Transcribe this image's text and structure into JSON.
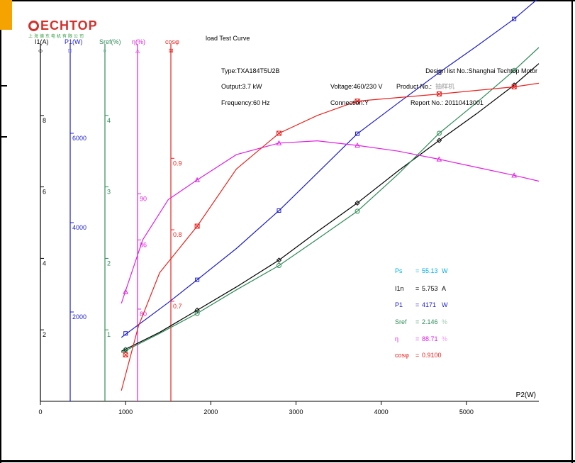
{
  "brand": {
    "name": "ECHTOP",
    "subtitle": "上海德东电机有限公司",
    "accent": "#d3302b"
  },
  "chart_data": {
    "type": "line",
    "title": "load Test Curve",
    "xlabel": "P2(W)",
    "xlim": [
      0,
      5850
    ],
    "x_ticks": [
      0,
      1000,
      2000,
      3000,
      4000,
      5000
    ],
    "axes": [
      {
        "key": "I1",
        "label": "I1(A)",
        "marker": "◇",
        "color": "#000000",
        "range": [
          0,
          10
        ],
        "ticks": [
          2,
          4,
          6,
          8
        ]
      },
      {
        "key": "P1",
        "label": "P1(W)",
        "marker": "□",
        "color": "#1c1ccf",
        "range": [
          0,
          8000
        ],
        "ticks": [
          2000,
          4000,
          6000
        ]
      },
      {
        "key": "Sref",
        "label": "Sref(%)",
        "marker": "○",
        "color": "#2e8b57",
        "range": [
          0,
          5
        ],
        "ticks": [
          1,
          2,
          3,
          4
        ]
      },
      {
        "key": "eta",
        "label": "η(%)",
        "marker": "△",
        "color": "#e020e0",
        "range": [
          72,
          103
        ],
        "ticks": [
          80,
          86,
          90
        ]
      },
      {
        "key": "cos",
        "label": "cosφ",
        "marker": "⊠",
        "color": "#e8231f",
        "range": [
          0.56,
          1.06
        ],
        "ticks": [
          0.7,
          0.8,
          0.9
        ]
      }
    ],
    "series": [
      {
        "name": "I1",
        "axis": "I1",
        "color": "#000000",
        "x": [
          1000,
          1840,
          2800,
          3720,
          4680,
          5560
        ],
        "y": [
          1.45,
          2.55,
          3.95,
          5.55,
          7.3,
          8.85
        ],
        "curve_x": [
          950,
          1400,
          1840,
          2300,
          2800,
          3250,
          3720,
          4200,
          4680,
          5120,
          5560,
          5850
        ],
        "curve_y": [
          1.4,
          1.93,
          2.55,
          3.2,
          3.95,
          4.75,
          5.55,
          6.45,
          7.3,
          8.05,
          8.85,
          9.45
        ]
      },
      {
        "name": "P1",
        "axis": "P1",
        "color": "#1c1ccf",
        "x": [
          1000,
          1840,
          2800,
          3720,
          4680,
          5560
        ],
        "y": [
          1520,
          2720,
          4270,
          5990,
          7360,
          8560
        ],
        "curve_x": [
          950,
          1500,
          1840,
          2300,
          2800,
          3250,
          3720,
          4200,
          4680,
          5120,
          5560,
          5850
        ],
        "curve_y": [
          1430,
          2210,
          2720,
          3420,
          4270,
          5110,
          5990,
          6680,
          7360,
          7950,
          8560,
          9030
        ]
      },
      {
        "name": "Sref",
        "axis": "Sref",
        "color": "#2e8b57",
        "x": [
          1000,
          1840,
          2800,
          3720,
          4680,
          5560
        ],
        "y": [
          0.72,
          1.23,
          1.9,
          2.66,
          3.75,
          4.63
        ],
        "curve_x": [
          950,
          1400,
          1840,
          2300,
          2800,
          3250,
          3720,
          4200,
          4680,
          5120,
          5560,
          5850
        ],
        "curve_y": [
          0.68,
          0.95,
          1.23,
          1.56,
          1.9,
          2.27,
          2.66,
          3.18,
          3.75,
          4.18,
          4.63,
          4.95
        ]
      },
      {
        "name": "eta",
        "axis": "eta",
        "color": "#e020e0",
        "x": [
          1000,
          1840,
          2800,
          3720,
          4680,
          5560
        ],
        "y": [
          81.5,
          91.2,
          94.4,
          94.2,
          93.0,
          91.6
        ],
        "curve_x": [
          950,
          1200,
          1500,
          1840,
          2300,
          2800,
          3250,
          3720,
          4200,
          4680,
          5120,
          5560,
          5850
        ],
        "curve_y": [
          80.5,
          86.0,
          89.5,
          91.2,
          93.4,
          94.4,
          94.6,
          94.2,
          93.7,
          93.0,
          92.3,
          91.6,
          91.1
        ]
      },
      {
        "name": "cos",
        "axis": "cos",
        "color": "#e8231f",
        "x": [
          1000,
          1840,
          2800,
          3720,
          4680,
          5560
        ],
        "y": [
          0.625,
          0.805,
          0.935,
          0.98,
          0.99,
          1.0
        ],
        "curve_x": [
          950,
          1150,
          1400,
          1840,
          2300,
          2800,
          3250,
          3720,
          4200,
          4680,
          5120,
          5560,
          5850
        ],
        "curve_y": [
          0.575,
          0.665,
          0.74,
          0.805,
          0.885,
          0.935,
          0.96,
          0.98,
          0.985,
          0.99,
          0.995,
          1.0,
          1.005
        ]
      }
    ],
    "info": {
      "type": "Type:TXA184T5U2B",
      "output": "Output:3.7  kW",
      "frequency": "Frequency:60  Hz",
      "voltage": "Voltage:460/230  V",
      "product": "Product No.:",
      "product_value": "抽样机",
      "connection": "Connection:Y",
      "design": "Design  list  No.:Shanghai  Techtop  Motor",
      "report": "Report  No.:  20110413001"
    },
    "results": [
      {
        "name": "Ps",
        "eq": "=",
        "value": "55.13",
        "unit": "W",
        "color": "#00b0e0"
      },
      {
        "name": "I1n",
        "eq": "=",
        "value": "5.753",
        "unit": "A",
        "color": "#000000"
      },
      {
        "name": "P1",
        "eq": "=",
        "value": "4171",
        "unit": "W",
        "color": "#1c1ccf"
      },
      {
        "name": "Sref",
        "eq": "=",
        "value": "2.146",
        "unit": "%",
        "color": "#2e8b57"
      },
      {
        "name": "η",
        "eq": "=",
        "value": "88.71",
        "unit": "%",
        "color": "#e020e0"
      },
      {
        "name": "cosφ",
        "eq": "=",
        "value": "0.9100",
        "unit": "",
        "color": "#e8231f"
      }
    ]
  }
}
